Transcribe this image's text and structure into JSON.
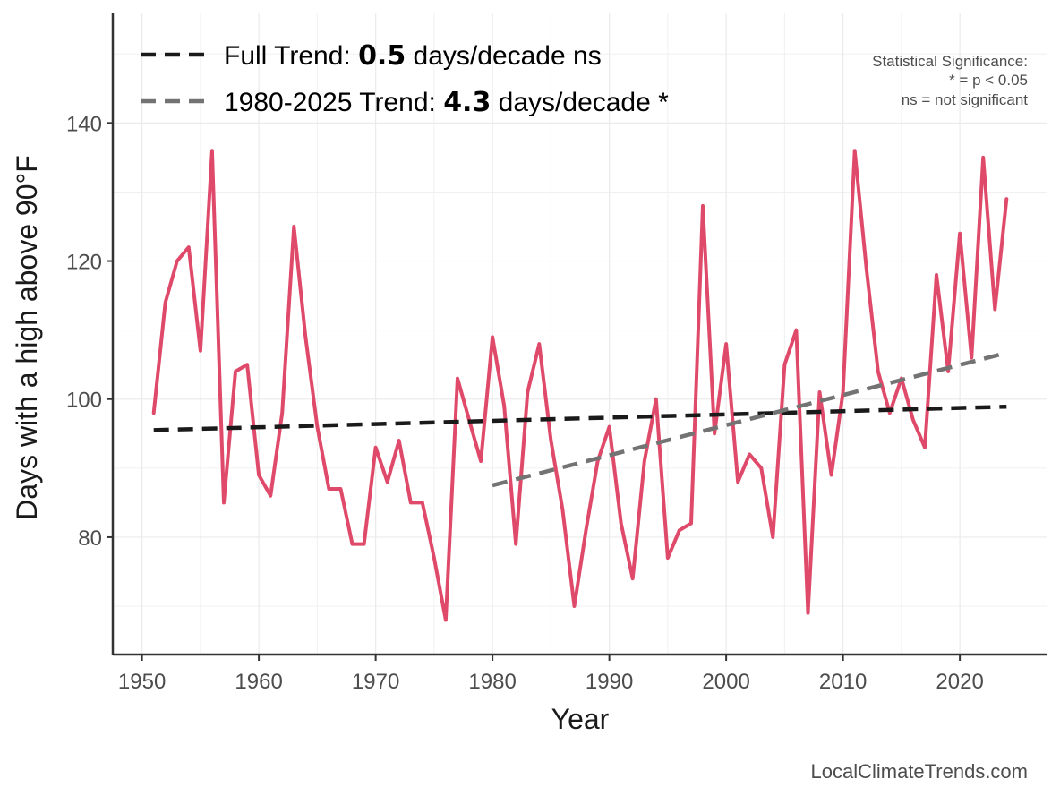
{
  "chart_data": {
    "type": "line",
    "xlabel": "Year",
    "ylabel": "Days with a high above 90°F",
    "xlim": [
      1947.5,
      2027.5
    ],
    "ylim": [
      63,
      156
    ],
    "x_ticks": [
      1950,
      1960,
      1970,
      1980,
      1990,
      2000,
      2010,
      2020
    ],
    "x_tick_labels": [
      "1950",
      "1960",
      "1970",
      "1980",
      "1990",
      "2000",
      "2010",
      "2020"
    ],
    "y_ticks": [
      80,
      100,
      120,
      140
    ],
    "y_tick_labels": [
      "80",
      "100",
      "120",
      "140"
    ],
    "grid": true,
    "series": [
      {
        "name": "Days above 90°F",
        "color": "#e04a6a",
        "style": "solid",
        "x": [
          1951,
          1952,
          1953,
          1954,
          1955,
          1956,
          1957,
          1958,
          1959,
          1960,
          1961,
          1962,
          1963,
          1964,
          1965,
          1966,
          1967,
          1968,
          1969,
          1970,
          1971,
          1972,
          1973,
          1974,
          1975,
          1976,
          1977,
          1978,
          1979,
          1980,
          1981,
          1982,
          1983,
          1984,
          1985,
          1986,
          1987,
          1988,
          1989,
          1990,
          1991,
          1992,
          1993,
          1994,
          1995,
          1996,
          1997,
          1998,
          1999,
          2000,
          2001,
          2002,
          2003,
          2004,
          2005,
          2006,
          2007,
          2008,
          2009,
          2010,
          2011,
          2012,
          2013,
          2014,
          2015,
          2016,
          2017,
          2018,
          2019,
          2020,
          2021,
          2022,
          2023,
          2024
        ],
        "values": [
          98,
          114,
          120,
          122,
          107,
          136,
          85,
          104,
          105,
          89,
          86,
          98,
          125,
          109,
          96,
          87,
          87,
          79,
          79,
          93,
          88,
          94,
          85,
          85,
          77,
          68,
          103,
          97,
          91,
          109,
          99,
          79,
          101,
          108,
          94,
          84,
          70,
          81,
          91,
          96,
          82,
          74,
          91,
          100,
          77,
          81,
          82,
          128,
          95,
          108,
          88,
          92,
          90,
          80,
          105,
          110,
          69,
          101,
          89,
          101,
          136,
          119,
          104,
          98,
          103,
          97,
          93,
          118,
          104,
          124,
          106,
          135,
          113,
          129
        ]
      },
      {
        "name": "Full Trend",
        "color": "#1a1a1a",
        "style": "dashed",
        "x": [
          1951,
          2024
        ],
        "values": [
          95.5,
          98.9
        ]
      },
      {
        "name": "1980-2025 Trend",
        "color": "#737373",
        "style": "dashed",
        "x": [
          1980,
          2024
        ],
        "values": [
          87.5,
          106.7
        ]
      }
    ],
    "legend": {
      "position": "top-left",
      "entries": [
        {
          "prefix": "Full Trend: ",
          "value": "0.5",
          "suffix": " days/decade ns",
          "color": "#1a1a1a"
        },
        {
          "prefix": "1980-2025 Trend: ",
          "value": "4.3",
          "suffix": " days/decade *",
          "color": "#737373"
        }
      ]
    },
    "annotation": {
      "position": "top-right",
      "lines": [
        "Statistical Significance:",
        "* = p < 0.05",
        "ns = not significant"
      ]
    },
    "credit": "LocalClimateTrends.com"
  }
}
